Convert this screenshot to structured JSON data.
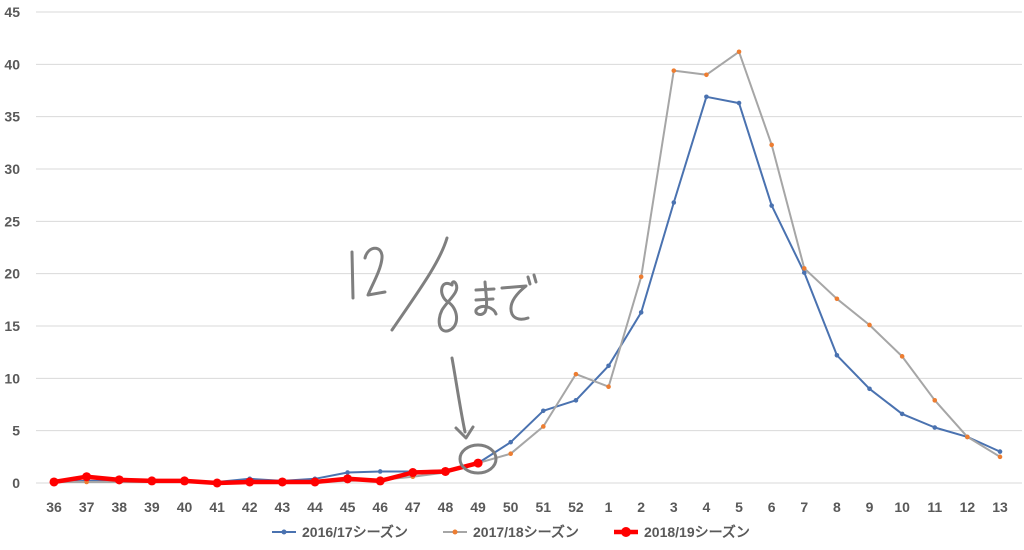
{
  "chart_data": {
    "type": "line",
    "title": "",
    "xlabel": "",
    "ylabel": "",
    "ylim": [
      0,
      45
    ],
    "yticks": [
      0,
      5,
      10,
      15,
      20,
      25,
      30,
      35,
      40,
      45
    ],
    "grid": true,
    "legend_position": "bottom",
    "categories": [
      "36",
      "37",
      "38",
      "39",
      "40",
      "41",
      "42",
      "43",
      "44",
      "45",
      "46",
      "47",
      "48",
      "49",
      "50",
      "51",
      "52",
      "1",
      "2",
      "3",
      "4",
      "5",
      "6",
      "7",
      "8",
      "9",
      "10",
      "11",
      "12",
      "13"
    ],
    "series": [
      {
        "name": "2016/17シーズン",
        "color": "#4a72b0",
        "marker": "small",
        "values": [
          0.1,
          0.2,
          0.2,
          0.2,
          0.2,
          0.1,
          0.4,
          0.2,
          0.4,
          1.0,
          1.1,
          1.1,
          1.2,
          1.9,
          3.9,
          6.9,
          7.9,
          11.2,
          16.3,
          26.8,
          36.9,
          36.3,
          26.5,
          20.1,
          12.2,
          9.0,
          6.6,
          5.3,
          4.4,
          3.0
        ]
      },
      {
        "name": "2017/18シーズン",
        "color": "#a6a6a6",
        "marker_color": "#ed7d31",
        "marker": "small",
        "values": [
          0.1,
          0.1,
          0.1,
          0.1,
          0.1,
          0.1,
          0.1,
          0.1,
          0.1,
          0.2,
          0.3,
          0.6,
          1.0,
          1.9,
          2.8,
          5.4,
          10.4,
          9.2,
          19.7,
          39.4,
          39.0,
          41.2,
          32.3,
          20.5,
          17.6,
          15.1,
          12.1,
          7.9,
          4.4,
          2.5
        ]
      },
      {
        "name": "2018/19シーズン",
        "color": "#ff0000",
        "marker": "large",
        "values": [
          0.1,
          0.6,
          0.3,
          0.2,
          0.2,
          0.0,
          0.1,
          0.1,
          0.1,
          0.4,
          0.2,
          1.0,
          1.1,
          1.9,
          null,
          null,
          null,
          null,
          null,
          null,
          null,
          null,
          null,
          null,
          null,
          null,
          null,
          null,
          null,
          null
        ]
      }
    ],
    "annotation": {
      "text": "12/8まで",
      "points_to_category": "49"
    }
  }
}
